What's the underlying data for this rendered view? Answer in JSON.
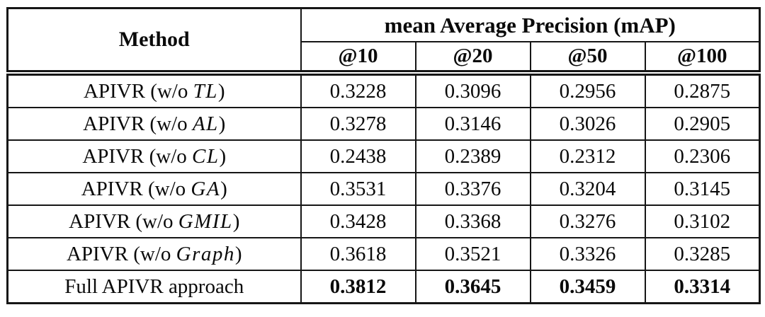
{
  "colors": {
    "background": "#ffffff",
    "border": "#161616",
    "text": "#0a0a0a"
  },
  "table": {
    "header": {
      "method_label": "Method",
      "group_label": "mean Average Precision (mAP)",
      "columns": [
        "@10",
        "@20",
        "@50",
        "@100"
      ]
    },
    "rows": [
      {
        "method_prefix": "APIVR (w/o ",
        "method_math": "TL",
        "method_suffix": ")",
        "values": [
          "0.3228",
          "0.3096",
          "0.2956",
          "0.2875"
        ]
      },
      {
        "method_prefix": "APIVR (w/o ",
        "method_math": "AL",
        "method_suffix": ")",
        "values": [
          "0.3278",
          "0.3146",
          "0.3026",
          "0.2905"
        ]
      },
      {
        "method_prefix": "APIVR (w/o ",
        "method_math": "CL",
        "method_suffix": ")",
        "values": [
          "0.2438",
          "0.2389",
          "0.2312",
          "0.2306"
        ]
      },
      {
        "method_prefix": "APIVR (w/o ",
        "method_math": "GA",
        "method_suffix": ")",
        "values": [
          "0.3531",
          "0.3376",
          "0.3204",
          "0.3145"
        ]
      },
      {
        "method_prefix": "APIVR (w/o ",
        "method_math": "GMIL",
        "method_suffix": ")",
        "values": [
          "0.3428",
          "0.3368",
          "0.3276",
          "0.3102"
        ]
      },
      {
        "method_prefix": "APIVR (w/o ",
        "method_math": "Graph",
        "method_suffix": ")",
        "values": [
          "0.3618",
          "0.3521",
          "0.3326",
          "0.3285"
        ]
      },
      {
        "method_prefix": "Full APIVR approach",
        "method_math": "",
        "method_suffix": "",
        "values": [
          "0.3812",
          "0.3645",
          "0.3459",
          "0.3314"
        ]
      }
    ]
  }
}
